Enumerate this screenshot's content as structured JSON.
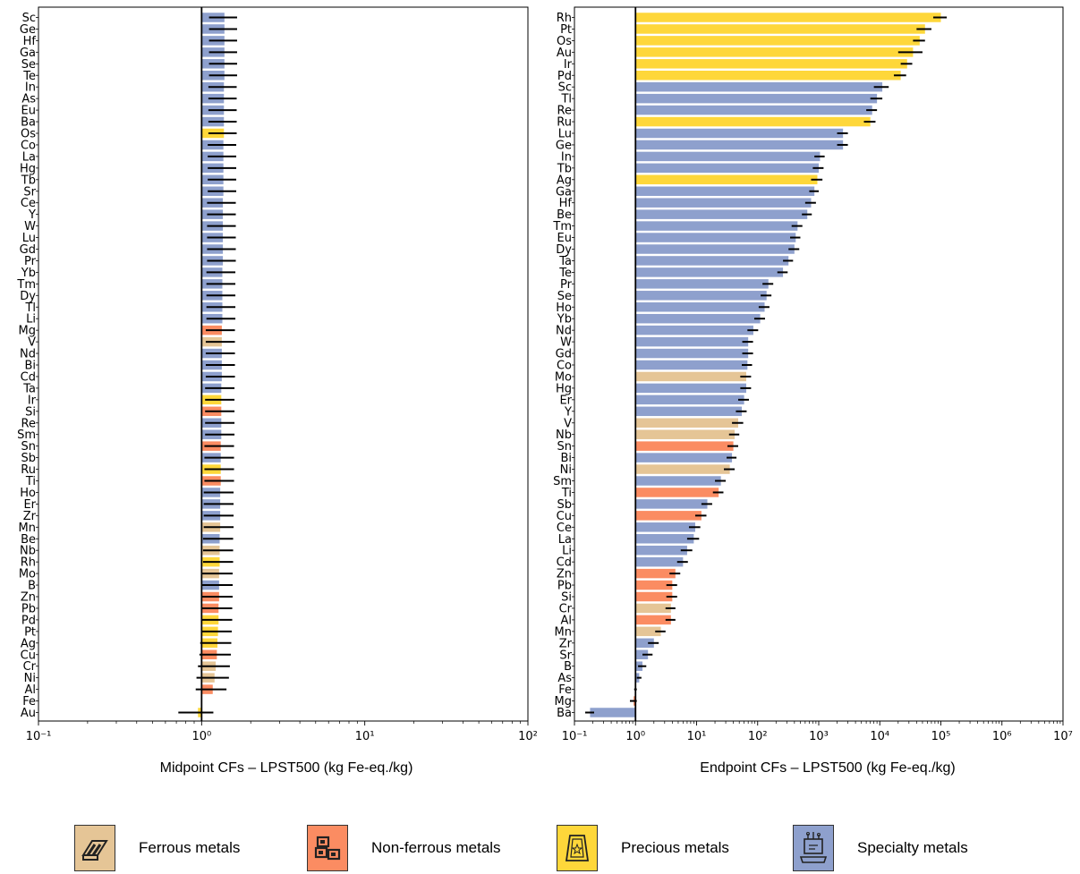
{
  "colors": {
    "Ferrous metals": "#e5c596",
    "Non-ferrous metals": "#fb8c62",
    "Precious metals": "#fed73a",
    "Specialty metals": "#8ea0cd"
  },
  "legend": [
    {
      "label": "Ferrous metals",
      "icon": "ferrous-beams-icon"
    },
    {
      "label": "Non-ferrous metals",
      "icon": "non-ferrous-ingots-icon"
    },
    {
      "label": "Precious metals",
      "icon": "precious-gold-bars-icon"
    },
    {
      "label": "Specialty metals",
      "icon": "specialty-chip-icon"
    }
  ],
  "chart_data": [
    {
      "type": "bar",
      "orientation": "horizontal",
      "xlabel": "Midpoint CFs – LPST500 (kg Fe-eq./kg)",
      "xscale": "log",
      "xlim": [
        0.1,
        100
      ],
      "xticks": [
        "10⁻¹",
        "10⁰",
        "10¹",
        "10²"
      ],
      "reference_line": 1,
      "categories": [
        "Sc",
        "Ge",
        "Hf",
        "Ga",
        "Se",
        "Te",
        "In",
        "As",
        "Eu",
        "Ba",
        "Os",
        "Co",
        "La",
        "Hg",
        "Tb",
        "Sr",
        "Ce",
        "Y",
        "W",
        "Lu",
        "Gd",
        "Pr",
        "Yb",
        "Tm",
        "Dy",
        "Tl",
        "Li",
        "Mg",
        "V",
        "Nd",
        "Bi",
        "Cd",
        "Ta",
        "Ir",
        "Si",
        "Re",
        "Sm",
        "Sn",
        "Sb",
        "Ru",
        "Ti",
        "Ho",
        "Er",
        "Zr",
        "Mn",
        "Be",
        "Nb",
        "Rh",
        "Mo",
        "B",
        "Zn",
        "Pb",
        "Pd",
        "Pt",
        "Ag",
        "Cu",
        "Cr",
        "Ni",
        "Al",
        "Fe",
        "Au"
      ],
      "groups": [
        "Specialty metals",
        "Specialty metals",
        "Specialty metals",
        "Specialty metals",
        "Specialty metals",
        "Specialty metals",
        "Specialty metals",
        "Specialty metals",
        "Specialty metals",
        "Specialty metals",
        "Precious metals",
        "Specialty metals",
        "Specialty metals",
        "Specialty metals",
        "Specialty metals",
        "Specialty metals",
        "Specialty metals",
        "Specialty metals",
        "Specialty metals",
        "Specialty metals",
        "Specialty metals",
        "Specialty metals",
        "Specialty metals",
        "Specialty metals",
        "Specialty metals",
        "Specialty metals",
        "Specialty metals",
        "Non-ferrous metals",
        "Ferrous metals",
        "Specialty metals",
        "Specialty metals",
        "Specialty metals",
        "Specialty metals",
        "Precious metals",
        "Non-ferrous metals",
        "Specialty metals",
        "Specialty metals",
        "Non-ferrous metals",
        "Specialty metals",
        "Precious metals",
        "Non-ferrous metals",
        "Specialty metals",
        "Specialty metals",
        "Specialty metals",
        "Ferrous metals",
        "Specialty metals",
        "Ferrous metals",
        "Precious metals",
        "Ferrous metals",
        "Specialty metals",
        "Non-ferrous metals",
        "Non-ferrous metals",
        "Precious metals",
        "Precious metals",
        "Precious metals",
        "Non-ferrous metals",
        "Ferrous metals",
        "Ferrous metals",
        "Non-ferrous metals",
        "Ferrous metals",
        "Precious metals"
      ],
      "values": [
        1.38,
        1.38,
        1.38,
        1.38,
        1.38,
        1.38,
        1.37,
        1.37,
        1.37,
        1.37,
        1.37,
        1.36,
        1.36,
        1.36,
        1.36,
        1.36,
        1.35,
        1.35,
        1.35,
        1.35,
        1.35,
        1.35,
        1.34,
        1.34,
        1.34,
        1.34,
        1.34,
        1.33,
        1.33,
        1.33,
        1.33,
        1.33,
        1.32,
        1.32,
        1.32,
        1.32,
        1.32,
        1.31,
        1.31,
        1.31,
        1.31,
        1.3,
        1.3,
        1.3,
        1.3,
        1.29,
        1.29,
        1.29,
        1.28,
        1.28,
        1.28,
        1.27,
        1.27,
        1.26,
        1.25,
        1.24,
        1.22,
        1.2,
        1.17,
        1.0,
        0.95
      ],
      "errors": [
        0.27,
        0.27,
        0.27,
        0.27,
        0.27,
        0.27,
        0.27,
        0.27,
        0.27,
        0.27,
        0.27,
        0.27,
        0.27,
        0.27,
        0.27,
        0.27,
        0.27,
        0.27,
        0.27,
        0.27,
        0.27,
        0.27,
        0.27,
        0.27,
        0.27,
        0.27,
        0.27,
        0.27,
        0.27,
        0.27,
        0.27,
        0.27,
        0.27,
        0.27,
        0.27,
        0.27,
        0.27,
        0.27,
        0.27,
        0.27,
        0.27,
        0.27,
        0.27,
        0.27,
        0.27,
        0.27,
        0.27,
        0.27,
        0.27,
        0.27,
        0.27,
        0.27,
        0.27,
        0.27,
        0.27,
        0.27,
        0.27,
        0.27,
        0.25,
        0,
        0.23
      ]
    },
    {
      "type": "bar",
      "orientation": "horizontal",
      "xlabel": "Endpoint CFs – LPST500 (kg Fe-eq./kg)",
      "xscale": "log",
      "xlim": [
        0.1,
        10000000
      ],
      "xticks": [
        "10⁻¹",
        "10⁰",
        "10¹",
        "10²",
        "10³",
        "10⁴",
        "10⁵",
        "10⁶",
        "10⁷"
      ],
      "reference_line": 1,
      "categories": [
        "Rh",
        "Pt",
        "Os",
        "Au",
        "Ir",
        "Pd",
        "Sc",
        "Tl",
        "Re",
        "Ru",
        "Lu",
        "Ge",
        "In",
        "Tb",
        "Ag",
        "Ga",
        "Hf",
        "Be",
        "Tm",
        "Eu",
        "Dy",
        "Ta",
        "Te",
        "Pr",
        "Se",
        "Ho",
        "Yb",
        "Nd",
        "W",
        "Gd",
        "Co",
        "Mo",
        "Hg",
        "Er",
        "Y",
        "V",
        "Nb",
        "Sn",
        "Bi",
        "Ni",
        "Sm",
        "Ti",
        "Sb",
        "Cu",
        "Ce",
        "La",
        "Li",
        "Cd",
        "Zn",
        "Pb",
        "Si",
        "Cr",
        "Al",
        "Mn",
        "Zr",
        "Sr",
        "B",
        "As",
        "Fe",
        "Mg",
        "Ba"
      ],
      "groups": [
        "Precious metals",
        "Precious metals",
        "Precious metals",
        "Precious metals",
        "Precious metals",
        "Precious metals",
        "Specialty metals",
        "Specialty metals",
        "Specialty metals",
        "Precious metals",
        "Specialty metals",
        "Specialty metals",
        "Specialty metals",
        "Specialty metals",
        "Precious metals",
        "Specialty metals",
        "Specialty metals",
        "Specialty metals",
        "Specialty metals",
        "Specialty metals",
        "Specialty metals",
        "Specialty metals",
        "Specialty metals",
        "Specialty metals",
        "Specialty metals",
        "Specialty metals",
        "Specialty metals",
        "Specialty metals",
        "Specialty metals",
        "Specialty metals",
        "Specialty metals",
        "Ferrous metals",
        "Specialty metals",
        "Specialty metals",
        "Specialty metals",
        "Ferrous metals",
        "Ferrous metals",
        "Non-ferrous metals",
        "Specialty metals",
        "Ferrous metals",
        "Specialty metals",
        "Non-ferrous metals",
        "Specialty metals",
        "Non-ferrous metals",
        "Specialty metals",
        "Specialty metals",
        "Specialty metals",
        "Specialty metals",
        "Non-ferrous metals",
        "Non-ferrous metals",
        "Non-ferrous metals",
        "Ferrous metals",
        "Non-ferrous metals",
        "Ferrous metals",
        "Specialty metals",
        "Specialty metals",
        "Specialty metals",
        "Specialty metals",
        "Ferrous metals",
        "Non-ferrous metals",
        "Specialty metals"
      ],
      "values": [
        100000,
        55000,
        45000,
        35000,
        28000,
        22000,
        11000,
        9000,
        7500,
        7000,
        2500,
        2500,
        1050,
        1000,
        950,
        850,
        750,
        650,
        450,
        420,
        400,
        320,
        260,
        150,
        140,
        130,
        110,
        85,
        70,
        70,
        68,
        65,
        65,
        60,
        55,
        48,
        42,
        40,
        38,
        35,
        25,
        23,
        15,
        12,
        9.5,
        9.0,
        7.0,
        6.0,
        4.5,
        4.0,
        4.0,
        3.8,
        3.8,
        2.6,
        2.0,
        1.6,
        1.3,
        1.15,
        1.0,
        0.93,
        0.18
      ],
      "errors": [
        25000,
        15000,
        10000,
        15000,
        6000,
        5000,
        3000,
        2000,
        1500,
        1500,
        500,
        500,
        200,
        200,
        200,
        150,
        150,
        120,
        90,
        80,
        80,
        60,
        50,
        30,
        28,
        26,
        22,
        17,
        14,
        14,
        13,
        13,
        13,
        12,
        11,
        10,
        8,
        8,
        7,
        7,
        5,
        4.5,
        3,
        2.5,
        2,
        2,
        1.5,
        1.2,
        0.9,
        0.8,
        0.8,
        0.7,
        0.7,
        0.5,
        0.4,
        0.3,
        0.2,
        0.1,
        0.05,
        0.12,
        0.03
      ]
    }
  ]
}
